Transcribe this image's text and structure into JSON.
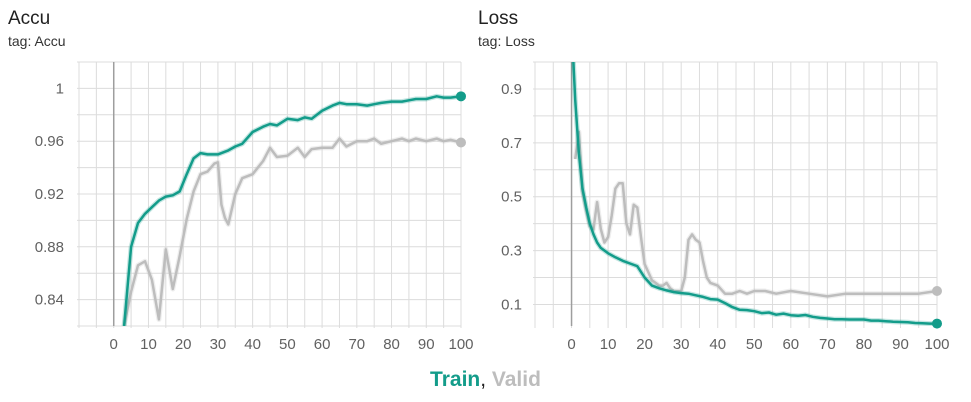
{
  "colors": {
    "train": "#139c8a",
    "valid": "#bdbdbd",
    "grid": "#dcdcdc",
    "axis": "#9e9e9e"
  },
  "legend": {
    "train": "Train",
    "sep": ", ",
    "valid": "Valid"
  },
  "charts": [
    {
      "title": "Accu",
      "subtitle": "tag: Accu"
    },
    {
      "title": "Loss",
      "subtitle": "tag: Loss"
    }
  ],
  "chart_data": [
    {
      "type": "line",
      "title": "Accu",
      "subtitle": "tag: Accu",
      "xlim": [
        -10,
        100
      ],
      "ylim": [
        0.82,
        1.02
      ],
      "xticks": [
        0,
        10,
        20,
        30,
        40,
        50,
        60,
        70,
        80,
        90,
        100
      ],
      "yticks": [
        0.84,
        0.88,
        0.92,
        0.96,
        1
      ],
      "ytick_labels": [
        "0.84",
        "0.88",
        "0.92",
        "0.96",
        "1"
      ],
      "grid": true,
      "series": [
        {
          "name": "Train",
          "color": "#139c8a",
          "x": [
            3,
            5,
            7,
            9,
            11,
            13,
            15,
            17,
            19,
            21,
            23,
            25,
            27,
            30,
            33,
            35,
            37,
            40,
            43,
            45,
            47,
            50,
            53,
            55,
            57,
            60,
            63,
            65,
            67,
            70,
            73,
            75,
            77,
            80,
            83,
            85,
            87,
            90,
            93,
            95,
            97,
            100
          ],
          "y": [
            0.82,
            0.88,
            0.898,
            0.905,
            0.91,
            0.915,
            0.918,
            0.919,
            0.922,
            0.935,
            0.947,
            0.951,
            0.95,
            0.95,
            0.953,
            0.956,
            0.958,
            0.967,
            0.971,
            0.973,
            0.972,
            0.977,
            0.976,
            0.978,
            0.977,
            0.983,
            0.987,
            0.989,
            0.988,
            0.988,
            0.987,
            0.988,
            0.989,
            0.99,
            0.99,
            0.991,
            0.992,
            0.992,
            0.994,
            0.993,
            0.993,
            0.994
          ]
        },
        {
          "name": "Valid",
          "color": "#bdbdbd",
          "x": [
            3,
            5,
            7,
            9,
            11,
            13,
            15,
            17,
            19,
            21,
            23,
            25,
            27,
            29,
            30,
            31,
            32,
            33,
            35,
            37,
            40,
            43,
            45,
            47,
            50,
            53,
            55,
            57,
            60,
            63,
            65,
            67,
            70,
            73,
            75,
            77,
            80,
            83,
            85,
            87,
            90,
            93,
            95,
            97,
            100
          ],
          "y": [
            0.82,
            0.846,
            0.866,
            0.869,
            0.855,
            0.825,
            0.878,
            0.848,
            0.873,
            0.901,
            0.922,
            0.935,
            0.937,
            0.943,
            0.944,
            0.912,
            0.902,
            0.897,
            0.92,
            0.932,
            0.935,
            0.945,
            0.955,
            0.948,
            0.949,
            0.955,
            0.948,
            0.954,
            0.955,
            0.955,
            0.962,
            0.956,
            0.96,
            0.96,
            0.962,
            0.958,
            0.96,
            0.962,
            0.96,
            0.962,
            0.96,
            0.962,
            0.96,
            0.961,
            0.959
          ]
        }
      ]
    },
    {
      "type": "line",
      "title": "Loss",
      "subtitle": "tag: Loss",
      "xlim": [
        -10,
        100
      ],
      "ylim": [
        0.02,
        1.0
      ],
      "xticks": [
        0,
        10,
        20,
        30,
        40,
        50,
        60,
        70,
        80,
        90,
        100
      ],
      "yticks": [
        0.1,
        0.3,
        0.5,
        0.7,
        0.9
      ],
      "ytick_labels": [
        "0.1",
        "0.3",
        "0.5",
        "0.7",
        "0.9"
      ],
      "grid": true,
      "series": [
        {
          "name": "Train",
          "color": "#139c8a",
          "x": [
            0.5,
            1,
            2,
            3,
            4,
            5,
            6,
            7,
            8,
            10,
            12,
            14,
            16,
            18,
            20,
            22,
            24,
            26,
            28,
            30,
            32,
            34,
            36,
            38,
            40,
            42,
            44,
            46,
            48,
            50,
            52,
            54,
            56,
            58,
            60,
            62,
            64,
            66,
            68,
            70,
            72,
            74,
            76,
            78,
            80,
            82,
            84,
            86,
            88,
            90,
            92,
            94,
            96,
            98,
            100
          ],
          "y": [
            1.0,
            0.86,
            0.66,
            0.53,
            0.46,
            0.4,
            0.36,
            0.33,
            0.31,
            0.29,
            0.275,
            0.262,
            0.252,
            0.242,
            0.2,
            0.17,
            0.16,
            0.152,
            0.146,
            0.142,
            0.14,
            0.134,
            0.128,
            0.12,
            0.118,
            0.105,
            0.09,
            0.08,
            0.079,
            0.075,
            0.068,
            0.07,
            0.062,
            0.066,
            0.06,
            0.058,
            0.061,
            0.054,
            0.05,
            0.048,
            0.045,
            0.045,
            0.044,
            0.044,
            0.044,
            0.04,
            0.04,
            0.038,
            0.036,
            0.035,
            0.034,
            0.031,
            0.03,
            0.029,
            0.029
          ]
        },
        {
          "name": "Valid",
          "color": "#bdbdbd",
          "x": [
            1,
            2,
            3,
            4,
            5,
            6,
            7,
            8,
            9,
            10,
            11,
            12,
            13,
            14,
            15,
            16,
            17,
            18,
            19,
            20,
            21,
            22,
            23,
            24,
            25,
            26,
            27,
            28,
            29,
            30,
            31,
            32,
            33,
            34,
            35,
            36,
            37,
            38,
            40,
            42,
            44,
            46,
            48,
            50,
            53,
            56,
            60,
            65,
            70,
            75,
            80,
            85,
            90,
            95,
            100
          ],
          "y": [
            0.64,
            0.74,
            0.52,
            0.45,
            0.39,
            0.38,
            0.48,
            0.38,
            0.33,
            0.35,
            0.43,
            0.53,
            0.55,
            0.55,
            0.4,
            0.36,
            0.47,
            0.46,
            0.35,
            0.25,
            0.22,
            0.19,
            0.18,
            0.17,
            0.17,
            0.18,
            0.16,
            0.15,
            0.15,
            0.15,
            0.2,
            0.34,
            0.36,
            0.34,
            0.33,
            0.26,
            0.2,
            0.18,
            0.17,
            0.14,
            0.14,
            0.15,
            0.14,
            0.15,
            0.15,
            0.14,
            0.15,
            0.14,
            0.13,
            0.14,
            0.14,
            0.14,
            0.14,
            0.14,
            0.15
          ]
        }
      ]
    }
  ]
}
